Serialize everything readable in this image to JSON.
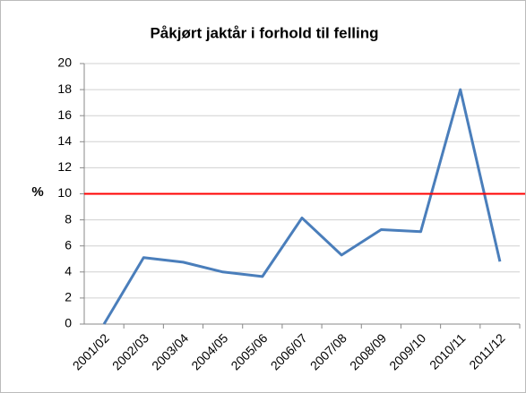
{
  "chart_data": {
    "type": "line",
    "title": "Påkjørt jaktår i forhold til felling",
    "ylabel": "%",
    "categories": [
      "2001/02",
      "2002/03",
      "2003/04",
      "2004/05",
      "2005/06",
      "2006/07",
      "2007/08",
      "2008/09",
      "2009/10",
      "2010/11",
      "2011/12"
    ],
    "series": [
      {
        "color": "#4a7ebb",
        "values": [
          0,
          5.1,
          4.75,
          4.0,
          3.65,
          8.15,
          5.3,
          7.25,
          7.1,
          18.0,
          4.8
        ]
      }
    ],
    "ylim": [
      0,
      20
    ],
    "yticks": [
      0,
      2,
      4,
      6,
      8,
      10,
      12,
      14,
      16,
      18,
      20
    ],
    "grid": true,
    "reference_line": {
      "value": 10,
      "color": "#ff0000"
    }
  }
}
